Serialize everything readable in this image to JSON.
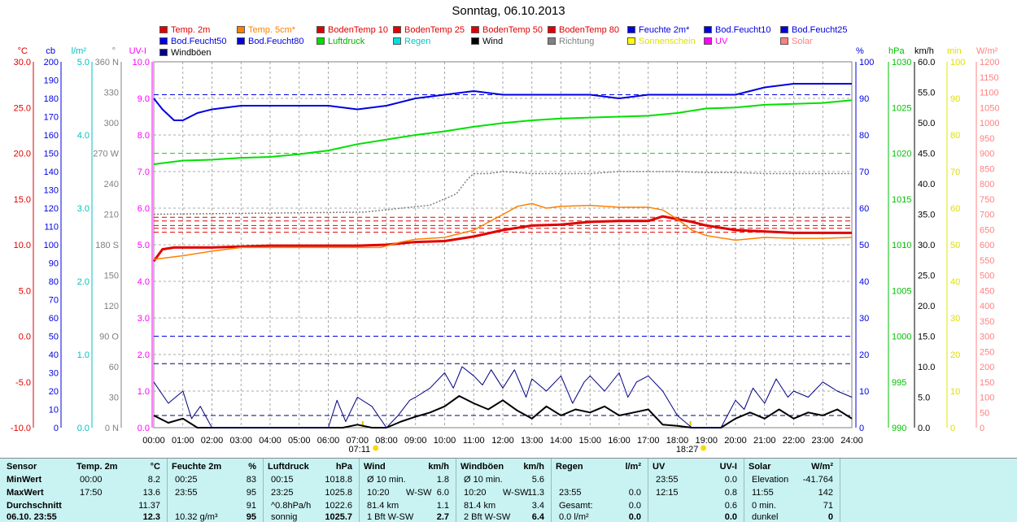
{
  "title": "Sonntag, 06.10.2013",
  "legend": [
    {
      "label": "Temp. 2m",
      "color": "#e00000"
    },
    {
      "label": "Temp. 5cm*",
      "color": "#ff8000"
    },
    {
      "label": "BodenTemp 10",
      "color": "#e00000"
    },
    {
      "label": "BodenTemp 25",
      "color": "#e00000"
    },
    {
      "label": "BodenTemp 50",
      "color": "#e00000"
    },
    {
      "label": "BodenTemp 80",
      "color": "#e00000"
    },
    {
      "label": "Feuchte 2m*",
      "color": "#0000e0"
    },
    {
      "label": "Bod.Feucht10",
      "color": "#0000e0"
    },
    {
      "label": "Bod.Feucht25",
      "color": "#0000e0"
    },
    {
      "label": "Bod.Feucht50",
      "color": "#0000e0"
    },
    {
      "label": "Bod.Feucht80",
      "color": "#0000e0"
    },
    {
      "label": "Luftdruck",
      "color": "#00e000"
    },
    {
      "label": "Regen",
      "color": "#00e0e0"
    },
    {
      "label": "Wind",
      "color": "#000000"
    },
    {
      "label": "Richtung",
      "color": "#808080"
    },
    {
      "label": "Sonnenschein",
      "color": "#ffff00"
    },
    {
      "label": "UV",
      "color": "#ff00ff"
    },
    {
      "label": "Solar",
      "color": "#ff8080"
    },
    {
      "label": "Windböen",
      "color": "#000080"
    }
  ],
  "colors": {
    "temp": "#e00000",
    "temp5": "#ff8000",
    "hum": "#0000e0",
    "press": "#00e000",
    "rain": "#00e0e0",
    "wind": "#000000",
    "dir": "#808080",
    "sun": "#e0e000",
    "uv": "#ff00ff",
    "solar": "#ff8080",
    "gust": "#000080"
  },
  "axes": {
    "left": [
      {
        "unit": "°C",
        "color": "#e00000",
        "ticks": [
          "30.0",
          "25.0",
          "20.0",
          "15.0",
          "10.0",
          "5.0",
          "0.0",
          "-5.0",
          "-10.0"
        ]
      },
      {
        "unit": "cb",
        "color": "#0000e0",
        "ticks": [
          "200",
          "190",
          "180",
          "170",
          "160",
          "150",
          "140",
          "130",
          "120",
          "110",
          "100",
          "90",
          "80",
          "70",
          "60",
          "50",
          "40",
          "30",
          "20",
          "10",
          "0"
        ]
      },
      {
        "unit": "l/m²",
        "color": "#00c0c0",
        "ticks": [
          "5.0",
          "4.0",
          "3.0",
          "2.0",
          "1.0",
          "0.0"
        ]
      },
      {
        "unit": "°",
        "color": "#808080",
        "ticks": [
          "360 N",
          "330",
          "300",
          "270 W",
          "240",
          "210",
          "180 S",
          "150",
          "120",
          "90 O",
          "60",
          "30",
          "0 N"
        ]
      },
      {
        "unit": "UV-I",
        "color": "#ff00ff",
        "ticks": [
          "10.0",
          "9.0",
          "8.0",
          "7.0",
          "6.0",
          "5.0",
          "4.0",
          "3.0",
          "2.0",
          "1.0",
          "0.0"
        ]
      }
    ],
    "right": [
      {
        "unit": "%",
        "color": "#0000e0",
        "ticks": [
          "100",
          "90",
          "80",
          "70",
          "60",
          "50",
          "40",
          "30",
          "20",
          "10",
          "0"
        ]
      },
      {
        "unit": "hPa",
        "color": "#00c000",
        "ticks": [
          "1030",
          "1025",
          "1020",
          "1015",
          "1010",
          "1005",
          "1000",
          "995",
          "990"
        ]
      },
      {
        "unit": "km/h",
        "color": "#000000",
        "ticks": [
          "60.0",
          "55.0",
          "50.0",
          "45.0",
          "40.0",
          "35.0",
          "30.0",
          "25.0",
          "20.0",
          "15.0",
          "10.0",
          "5.0",
          "0.0"
        ]
      },
      {
        "unit": "min",
        "color": "#e0e000",
        "ticks": [
          "100",
          "90",
          "80",
          "70",
          "60",
          "50",
          "40",
          "30",
          "20",
          "10",
          "0"
        ]
      },
      {
        "unit": "W/m²",
        "color": "#ff8080",
        "ticks": [
          "1200",
          "1150",
          "1100",
          "1050",
          "1000",
          "950",
          "900",
          "850",
          "800",
          "750",
          "700",
          "650",
          "600",
          "550",
          "500",
          "450",
          "400",
          "350",
          "300",
          "250",
          "200",
          "150",
          "100",
          "50",
          "0"
        ]
      }
    ],
    "x_ticks": [
      "00:00",
      "01:00",
      "02:00",
      "03:00",
      "04:00",
      "05:00",
      "06:00",
      "07:00",
      "08:00",
      "09:00",
      "10:00",
      "11:00",
      "12:00",
      "13:00",
      "14:00",
      "15:00",
      "16:00",
      "17:00",
      "18:00",
      "19:00",
      "20:00",
      "21:00",
      "22:00",
      "23:00",
      "24:00"
    ],
    "sunrise": "07:11",
    "sunset": "18:27"
  },
  "chart_data": {
    "type": "line",
    "x_unit": "hour",
    "xlim": [
      0,
      24
    ],
    "series": [
      {
        "name": "Temp. 2m",
        "axis": "°C",
        "color": "#e00000",
        "width": 3,
        "x": [
          0,
          0.3,
          0.7,
          2,
          4,
          6,
          7,
          8,
          9,
          10,
          11,
          12,
          13,
          14,
          15,
          16,
          17,
          17.5,
          18,
          18.5,
          19,
          20,
          22,
          24
        ],
        "values": [
          8.2,
          9.5,
          9.7,
          9.7,
          9.9,
          9.9,
          9.9,
          10.0,
          10.3,
          10.4,
          10.9,
          11.6,
          12.1,
          12.2,
          12.5,
          12.6,
          12.6,
          13.1,
          12.8,
          12.5,
          12.1,
          11.6,
          11.3,
          11.3
        ]
      },
      {
        "name": "Temp. 5cm*",
        "axis": "°C",
        "color": "#ff8000",
        "width": 1.5,
        "x": [
          0,
          1,
          2,
          3,
          4,
          5,
          6,
          7,
          7.8,
          8.5,
          9,
          10,
          11,
          12,
          12.5,
          13,
          13.5,
          14,
          15,
          16,
          17,
          17.5,
          18,
          18.5,
          19,
          20,
          21,
          22,
          23,
          24
        ],
        "values": [
          8.4,
          8.8,
          9.3,
          9.7,
          9.7,
          9.7,
          9.7,
          9.7,
          9.7,
          10.3,
          10.6,
          10.8,
          11.6,
          13.3,
          14.2,
          14.5,
          14.0,
          14.2,
          14.3,
          14.1,
          14.1,
          13.8,
          12.8,
          11.6,
          11.0,
          10.5,
          10.8,
          10.7,
          10.7,
          10.8
        ]
      },
      {
        "name": "Feuchte 2m*",
        "axis": "%",
        "color": "#0000e0",
        "width": 2,
        "x": [
          0,
          0.3,
          0.7,
          1,
          1.5,
          2,
          3,
          4,
          5,
          6,
          7,
          8,
          9,
          10,
          11,
          12,
          13,
          14,
          15,
          16,
          17,
          18,
          19,
          20,
          21,
          22,
          23,
          24
        ],
        "values": [
          90,
          87,
          84,
          84,
          86,
          87,
          88,
          88,
          88,
          88,
          87,
          88,
          90,
          91,
          92,
          91,
          91,
          91,
          91,
          90,
          91,
          91,
          91,
          91,
          93,
          94,
          94,
          94
        ]
      },
      {
        "name": "Luftdruck",
        "axis": "hPa",
        "color": "#00e000",
        "width": 2,
        "x": [
          0,
          1,
          2,
          3,
          4,
          5,
          6,
          7,
          8,
          9,
          10,
          11,
          12,
          13,
          14,
          15,
          16,
          17,
          18,
          19,
          20,
          21,
          22,
          23,
          24
        ],
        "values": [
          1018.8,
          1019.2,
          1019.3,
          1019.5,
          1019.6,
          1019.9,
          1020.3,
          1021.0,
          1021.5,
          1022.0,
          1022.4,
          1022.9,
          1023.3,
          1023.6,
          1023.8,
          1023.9,
          1024.0,
          1024.1,
          1024.4,
          1024.9,
          1025.0,
          1025.3,
          1025.4,
          1025.5,
          1025.8
        ]
      },
      {
        "name": "Richtung",
        "axis": "°",
        "color": "#808080",
        "width": 1.5,
        "x": [
          0,
          7,
          7.2,
          9.5,
          10.4,
          10.8,
          11,
          11.5,
          12,
          13,
          14,
          15,
          16,
          17,
          18,
          19,
          20,
          21,
          22,
          23,
          24
        ],
        "values": [
          210,
          212,
          212,
          219,
          230,
          245,
          250,
          250,
          252,
          250,
          250,
          250,
          252,
          252,
          252,
          251,
          251,
          250,
          250,
          250,
          250
        ]
      },
      {
        "name": "Wind",
        "axis": "km/h",
        "color": "#000000",
        "width": 2,
        "x": [
          0,
          0.5,
          1,
          1.5,
          2,
          3,
          4,
          5,
          6,
          6.5,
          7,
          7.5,
          8,
          8.5,
          9,
          9.5,
          10,
          10.5,
          11,
          11.5,
          12,
          12.5,
          13,
          13.5,
          14,
          14.5,
          15,
          15.5,
          16,
          16.5,
          17,
          17.5,
          18,
          18.5,
          19,
          19.5,
          20,
          20.5,
          21,
          21.5,
          22,
          22.5,
          23,
          23.5,
          24
        ],
        "values": [
          2.0,
          0.8,
          1.5,
          0,
          0,
          0,
          0,
          0,
          0,
          0,
          0.5,
          0,
          0,
          1.0,
          1.8,
          2.5,
          3.5,
          5.2,
          4.0,
          3.0,
          4.5,
          2.8,
          1.5,
          3.5,
          2.0,
          3.0,
          2.5,
          3.5,
          2.0,
          2.5,
          3.0,
          0.5,
          0.3,
          0,
          0,
          0,
          1.5,
          2.5,
          1.5,
          3.0,
          1.5,
          2.5,
          2.0,
          3.0,
          1.5
        ]
      },
      {
        "name": "Windböen",
        "axis": "km/h",
        "color": "#000080",
        "width": 1,
        "x": [
          0,
          0.5,
          1,
          1.3,
          1.6,
          2,
          3,
          4,
          5,
          6,
          6.3,
          6.6,
          7,
          7.5,
          8,
          8.4,
          8.8,
          9,
          9.5,
          10,
          10.3,
          10.6,
          11,
          11.3,
          11.6,
          12,
          12.4,
          12.8,
          13,
          13.5,
          14,
          14.4,
          14.8,
          15,
          15.5,
          16,
          16.3,
          16.6,
          17,
          17.5,
          18,
          18.5,
          19,
          19.5,
          20,
          20.3,
          20.6,
          21,
          21.4,
          21.8,
          22,
          22.5,
          23,
          23.5,
          24
        ],
        "values": [
          7.5,
          4.0,
          6.0,
          1.5,
          3.5,
          0,
          0,
          0,
          0,
          0,
          4.5,
          1.0,
          5.0,
          3.5,
          0,
          2.0,
          4.5,
          5.0,
          6.5,
          9.0,
          6.5,
          10.0,
          8.5,
          7.0,
          9.5,
          6.5,
          9.5,
          5.0,
          8.0,
          6.0,
          8.5,
          4.0,
          7.5,
          8.5,
          6.0,
          9.0,
          5.0,
          7.5,
          8.5,
          6.0,
          2.0,
          0,
          0,
          0,
          4.5,
          3.0,
          6.5,
          4.0,
          8.0,
          5.0,
          6.0,
          5.0,
          7.5,
          6.0,
          5.0
        ]
      }
    ],
    "reference_lines": [
      {
        "axis": "°C",
        "value": 11.37,
        "color": "#e00000"
      },
      {
        "axis": "°C",
        "value": 13.0,
        "color": "#e00000"
      },
      {
        "axis": "°C",
        "value": 12.6,
        "color": "#e00000"
      },
      {
        "axis": "°C",
        "value": 12.1,
        "color": "#e00000"
      },
      {
        "axis": "°C",
        "value": 11.8,
        "color": "#e00000"
      },
      {
        "axis": "%",
        "value": 91,
        "color": "#0000e0"
      },
      {
        "axis": "%",
        "value": 25,
        "color": "#0000e0"
      },
      {
        "axis": "%",
        "value": 75,
        "color": "#00e000"
      },
      {
        "axis": "km/h",
        "value": 10.5,
        "color": "#000080"
      },
      {
        "axis": "km/h",
        "value": 2.0,
        "color": "#000080"
      }
    ]
  },
  "summary": {
    "row_labels": [
      "Sensor",
      "MinWert",
      "MaxWert",
      "Durchschnitt",
      "06.10. 23:55"
    ],
    "sections": [
      {
        "head": "Temp. 2m",
        "unit": "°C",
        "rows": [
          [
            "00:00",
            "",
            "8.2"
          ],
          [
            "17:50",
            "",
            "13.6"
          ],
          [
            "",
            "",
            "11.37"
          ],
          [
            "",
            "",
            "12.3"
          ]
        ]
      },
      {
        "head": "Feuchte 2m",
        "unit": "%",
        "rows": [
          [
            "00:25",
            "",
            "83"
          ],
          [
            "23:55",
            "",
            "95"
          ],
          [
            "",
            "",
            "91"
          ],
          [
            "10.32 g/m³",
            "",
            "95"
          ]
        ]
      },
      {
        "head": "Luftdruck",
        "unit": "hPa",
        "rows": [
          [
            "00:15",
            "",
            "1018.8"
          ],
          [
            "23:25",
            "",
            "1025.8"
          ],
          [
            "^0.8hPa/h",
            "",
            "1022.6"
          ],
          [
            "sonnig",
            "",
            "1025.7"
          ]
        ]
      },
      {
        "head": "Wind",
        "unit": "km/h",
        "rows": [
          [
            "Ø 10 min.",
            "",
            "1.8"
          ],
          [
            "10:20",
            "W-SW",
            "6.0"
          ],
          [
            "81.4 km",
            "",
            "1.1"
          ],
          [
            "1 Bft W-SW",
            "",
            "2.7"
          ]
        ]
      },
      {
        "head": "Windböen",
        "unit": "km/h",
        "rows": [
          [
            "Ø 10 min.",
            "",
            "5.6"
          ],
          [
            "10:20",
            "W-SW",
            "11.3"
          ],
          [
            "81.4 km",
            "",
            "3.4"
          ],
          [
            "2 Bft W-SW",
            "",
            "6.4"
          ]
        ]
      },
      {
        "head": "Regen",
        "unit": "l/m²",
        "rows": [
          [
            "",
            "",
            ""
          ],
          [
            "23:55",
            "",
            "0.0"
          ],
          [
            "Gesamt:",
            "",
            "0.0"
          ],
          [
            "0.0 l/m²",
            "",
            "0.0"
          ]
        ]
      },
      {
        "head": "UV",
        "unit": "UV-I",
        "rows": [
          [
            "23:55",
            "",
            "0.0"
          ],
          [
            "12:15",
            "",
            "0.8"
          ],
          [
            "",
            "",
            "0.6"
          ],
          [
            "",
            "",
            "0.0"
          ]
        ]
      },
      {
        "head": "Solar",
        "unit": "W/m²",
        "rows": [
          [
            "Elevation",
            "",
            "-41.764"
          ],
          [
            "11:55",
            "",
            "142"
          ],
          [
            "0 min.",
            "",
            "71"
          ],
          [
            "dunkel",
            "",
            "0"
          ]
        ]
      }
    ]
  }
}
